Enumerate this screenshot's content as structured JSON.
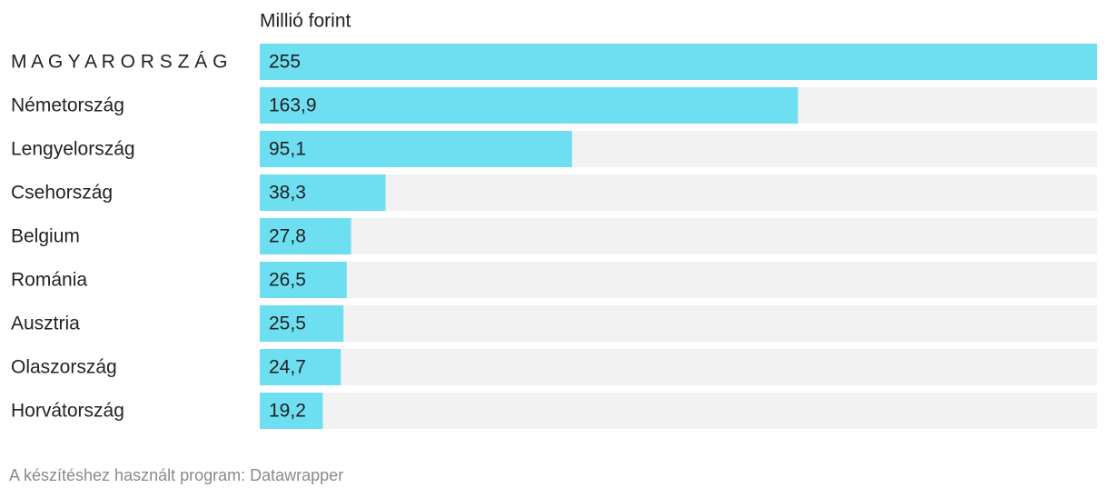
{
  "chart_data": {
    "type": "bar",
    "orientation": "horizontal",
    "axis_label": "Millió forint",
    "categories": [
      "M A G Y A R O R S Z Á G",
      "Németország",
      "Lengyelország",
      "Csehország",
      "Belgium",
      "Románia",
      "Ausztria",
      "Olaszország",
      "Horvátország"
    ],
    "values": [
      255,
      163.9,
      95.1,
      38.3,
      27.8,
      26.5,
      25.5,
      24.7,
      19.2
    ],
    "value_labels": [
      "255",
      "163,9",
      "95,1",
      "38,3",
      "27,8",
      "26,5",
      "25,5",
      "24,7",
      "19,2"
    ],
    "color": "#6ddff0",
    "xlim": [
      0,
      255
    ],
    "footer": "A készítéshez használt program: Datawrapper"
  }
}
